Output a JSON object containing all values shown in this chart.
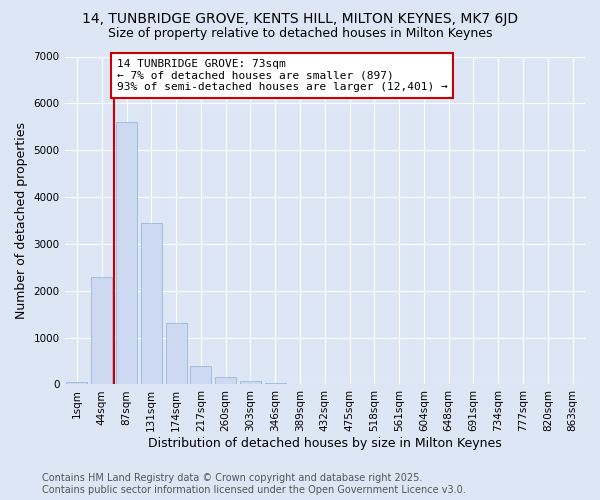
{
  "title_line1": "14, TUNBRIDGE GROVE, KENTS HILL, MILTON KEYNES, MK7 6JD",
  "title_line2": "Size of property relative to detached houses in Milton Keynes",
  "xlabel": "Distribution of detached houses by size in Milton Keynes",
  "ylabel": "Number of detached properties",
  "categories": [
    "1sqm",
    "44sqm",
    "87sqm",
    "131sqm",
    "174sqm",
    "217sqm",
    "260sqm",
    "303sqm",
    "346sqm",
    "389sqm",
    "432sqm",
    "475sqm",
    "518sqm",
    "561sqm",
    "604sqm",
    "648sqm",
    "691sqm",
    "734sqm",
    "777sqm",
    "820sqm",
    "863sqm"
  ],
  "values": [
    50,
    2300,
    5600,
    3450,
    1320,
    390,
    155,
    65,
    30,
    5,
    0,
    0,
    0,
    0,
    0,
    0,
    0,
    0,
    0,
    0,
    0
  ],
  "bar_color": "#ccd9f0",
  "bar_edge_color": "#8ab0d8",
  "vline_color": "#cc0000",
  "annotation_text": "14 TUNBRIDGE GROVE: 73sqm\n← 7% of detached houses are smaller (897)\n93% of semi-detached houses are larger (12,401) →",
  "annotation_box_color": "white",
  "annotation_box_edge": "#cc0000",
  "ylim": [
    0,
    7000
  ],
  "yticks": [
    0,
    1000,
    2000,
    3000,
    4000,
    5000,
    6000,
    7000
  ],
  "bg_color": "#dce6f5",
  "plot_bg_color": "#dce6f5",
  "grid_color": "#ffffff",
  "footnote": "Contains HM Land Registry data © Crown copyright and database right 2025.\nContains public sector information licensed under the Open Government Licence v3.0.",
  "title_fontsize": 10,
  "subtitle_fontsize": 9,
  "axis_label_fontsize": 9,
  "tick_fontsize": 7.5,
  "annotation_fontsize": 8,
  "footnote_fontsize": 7
}
